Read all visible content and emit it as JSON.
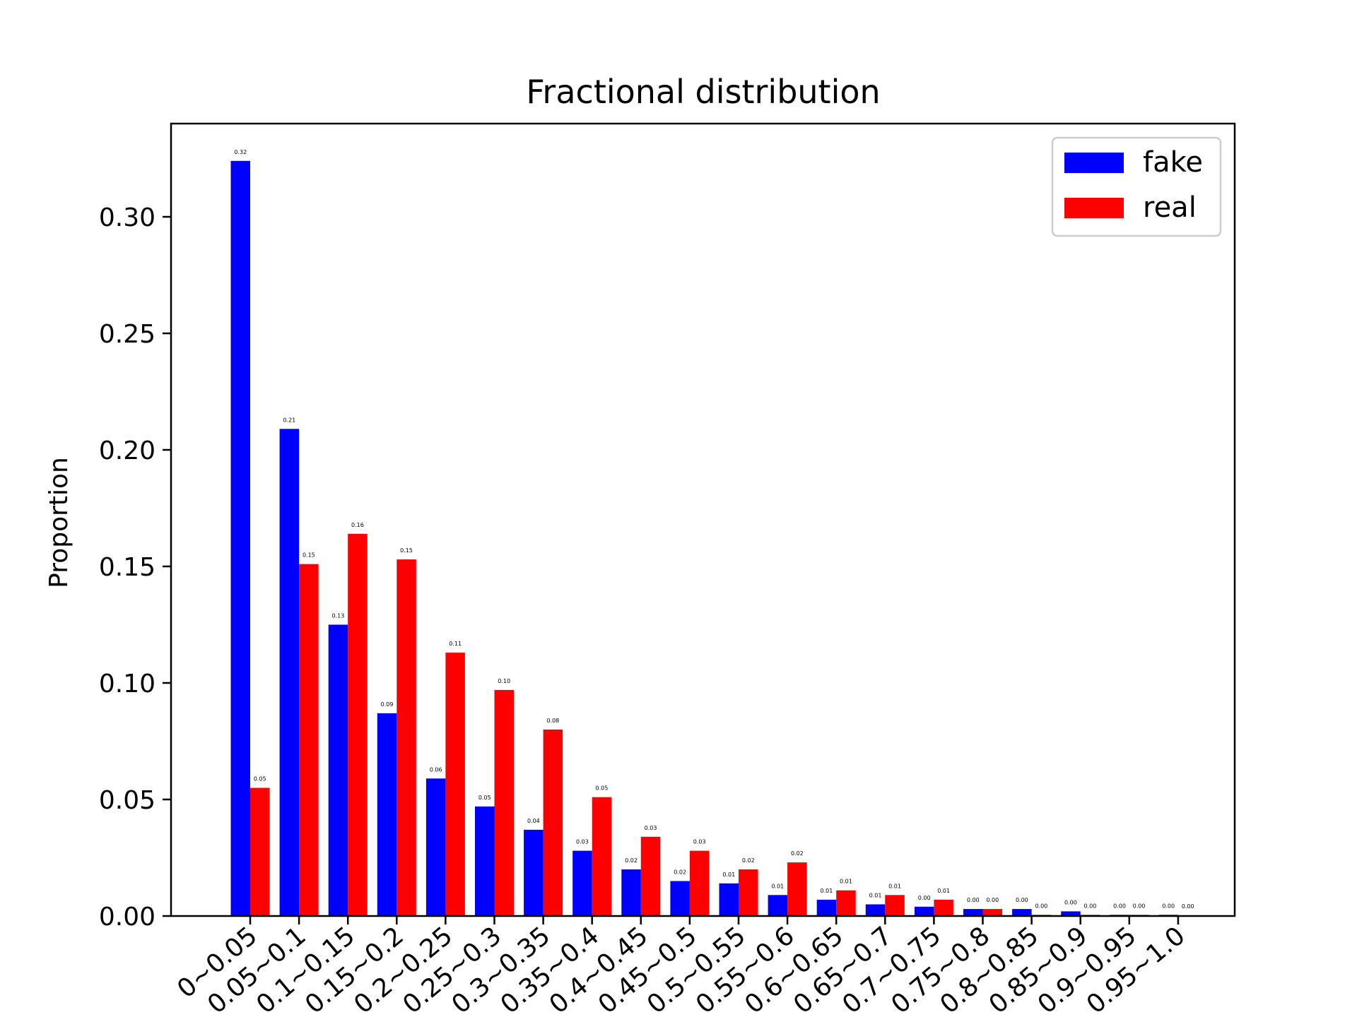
{
  "chart_data": {
    "type": "bar",
    "title": "Fractional distribution",
    "xlabel": "",
    "ylabel": "Proportion",
    "categories": [
      "0~0.05",
      "0.05~0.1",
      "0.1~0.15",
      "0.15~0.2",
      "0.2~0.25",
      "0.25~0.3",
      "0.3~0.35",
      "0.35~0.4",
      "0.4~0.45",
      "0.45~0.5",
      "0.5~0.55",
      "0.55~0.6",
      "0.6~0.65",
      "0.65~0.7",
      "0.7~0.75",
      "0.75~0.8",
      "0.8~0.85",
      "0.85~0.9",
      "0.9~0.95",
      "0.95~1.0"
    ],
    "series": [
      {
        "name": "fake",
        "color": "#0000ff",
        "values": [
          0.324,
          0.209,
          0.125,
          0.087,
          0.059,
          0.047,
          0.037,
          0.028,
          0.02,
          0.015,
          0.014,
          0.009,
          0.007,
          0.005,
          0.004,
          0.003,
          0.003,
          0.002,
          0.0005,
          0.0005
        ],
        "labels": [
          "0.32",
          "0.21",
          "0.13",
          "0.09",
          "0.06",
          "0.05",
          "0.04",
          "0.03",
          "0.02",
          "0.02",
          "0.01",
          "0.01",
          "0.01",
          "0.01",
          "0.00",
          "0.00",
          "0.00",
          "0.00",
          "0.00",
          "0.00"
        ]
      },
      {
        "name": "real",
        "color": "#ff0000",
        "values": [
          0.055,
          0.151,
          0.164,
          0.153,
          0.113,
          0.097,
          0.08,
          0.051,
          0.034,
          0.028,
          0.02,
          0.023,
          0.011,
          0.009,
          0.007,
          0.003,
          0.0005,
          0.0005,
          0.0005,
          0.0003
        ],
        "labels": [
          "0.05",
          "0.15",
          "0.16",
          "0.15",
          "0.11",
          "0.10",
          "0.08",
          "0.05",
          "0.03",
          "0.03",
          "0.02",
          "0.02",
          "0.01",
          "0.01",
          "0.01",
          "0.00",
          "0.00",
          "0.00",
          "0.00",
          "0.00"
        ]
      }
    ],
    "yticks": [
      0.0,
      0.05,
      0.1,
      0.15,
      0.2,
      0.25,
      0.3
    ],
    "ytick_labels": [
      "0.00",
      "0.05",
      "0.10",
      "0.15",
      "0.20",
      "0.25",
      "0.30"
    ],
    "ylim": [
      0,
      0.34
    ],
    "grid": false,
    "legend": "top-right"
  }
}
